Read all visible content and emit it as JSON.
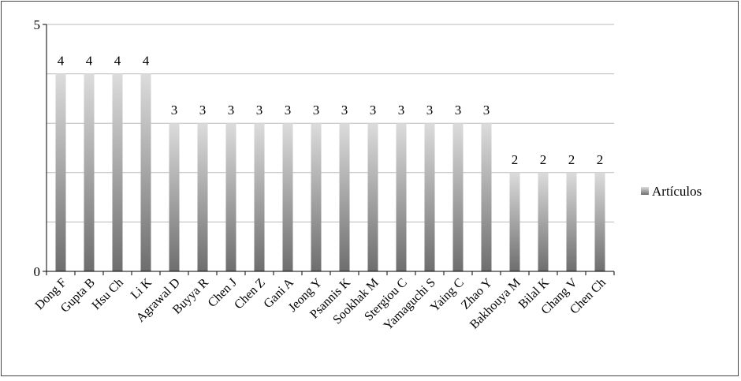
{
  "chart_data": {
    "type": "bar",
    "categories": [
      "Dong F",
      "Gupta B",
      "Hsu Ch",
      "Li K",
      "Agrawal D",
      "Buyya R",
      "Chen J",
      "Chen Z",
      "Gani A",
      "Jeong Y",
      "Psannis K",
      "Sookhak M",
      "Stergiou C",
      "Yamaguchi S",
      "Yaing C",
      "Zhao Y",
      "Bakhouya M",
      "Bilal K",
      "Chang V",
      "Chen Ch"
    ],
    "series": [
      {
        "name": "Artículos",
        "values": [
          4,
          4,
          4,
          4,
          3,
          3,
          3,
          3,
          3,
          3,
          3,
          3,
          3,
          3,
          3,
          3,
          2,
          2,
          2,
          2
        ]
      }
    ],
    "ylim": [
      0,
      5
    ],
    "yticks": [
      "0",
      "5"
    ],
    "grid": true,
    "legend_position": "right",
    "data_labels": true
  },
  "colors": {
    "bar_light": "#dcdcdc",
    "bar_dark": "#6e6e6e",
    "grid": "#b8b8b8",
    "axis": "#000000"
  }
}
